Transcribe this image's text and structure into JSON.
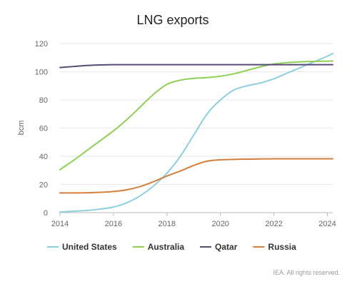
{
  "chart_data": {
    "type": "line",
    "title": "LNG exports",
    "xlabel": "",
    "ylabel": "bcm",
    "xlim": [
      2014,
      2024.2
    ],
    "ylim": [
      0,
      120
    ],
    "xticks": [
      2014,
      2016,
      2018,
      2020,
      2022,
      2024
    ],
    "yticks": [
      0,
      20,
      40,
      60,
      80,
      100,
      120
    ],
    "grid": true,
    "legend_position": "bottom",
    "series": [
      {
        "name": "United States",
        "color": "#8ecfdf",
        "x": [
          2014,
          2014.5,
          2015,
          2015.5,
          2016,
          2016.5,
          2017,
          2017.5,
          2018,
          2018.5,
          2019,
          2019.5,
          2020,
          2020.5,
          2021,
          2021.5,
          2022,
          2022.5,
          2023,
          2023.5,
          2024,
          2024.2
        ],
        "values": [
          0.5,
          1,
          1.5,
          2.5,
          4,
          7,
          12,
          19,
          28,
          40,
          55,
          70,
          80,
          87,
          90,
          92,
          95,
          99,
          103,
          107,
          111,
          113
        ]
      },
      {
        "name": "Australia",
        "color": "#8ecf55",
        "x": [
          2014,
          2014.5,
          2015,
          2015.5,
          2016,
          2016.5,
          2017,
          2017.5,
          2018,
          2018.5,
          2019,
          2019.5,
          2020,
          2020.5,
          2021,
          2021.5,
          2022,
          2022.5,
          2023,
          2023.5,
          2024,
          2024.2
        ],
        "values": [
          30.5,
          37,
          44,
          51,
          58,
          66,
          75,
          84,
          91,
          94,
          95.3,
          95.8,
          96.8,
          98.5,
          101,
          103.5,
          105.5,
          106.5,
          107,
          107.3,
          107.5,
          107.6
        ]
      },
      {
        "name": "Qatar",
        "color": "#5a4a78",
        "x": [
          2014,
          2014.5,
          2015,
          2015.5,
          2016,
          2017,
          2018,
          2019,
          2020,
          2021,
          2022,
          2023,
          2024,
          2024.2
        ],
        "values": [
          103,
          103.7,
          104.4,
          104.8,
          105,
          105,
          105,
          105,
          105,
          105,
          105,
          105,
          105,
          105
        ]
      },
      {
        "name": "Russia",
        "color": "#d47f3d",
        "x": [
          2014,
          2014.5,
          2015,
          2015.5,
          2016,
          2016.5,
          2017,
          2017.5,
          2018,
          2018.5,
          2019,
          2019.5,
          2020,
          2020.5,
          2021,
          2021.5,
          2022,
          2023,
          2024,
          2024.2
        ],
        "values": [
          14,
          14,
          14.1,
          14.4,
          15,
          16.2,
          18.5,
          22,
          26,
          29.5,
          33.5,
          36.5,
          37.5,
          37.8,
          38,
          38.1,
          38.2,
          38.2,
          38.2,
          38.2
        ]
      }
    ]
  },
  "footer": {
    "credit": "IEA. All rights reserved."
  }
}
